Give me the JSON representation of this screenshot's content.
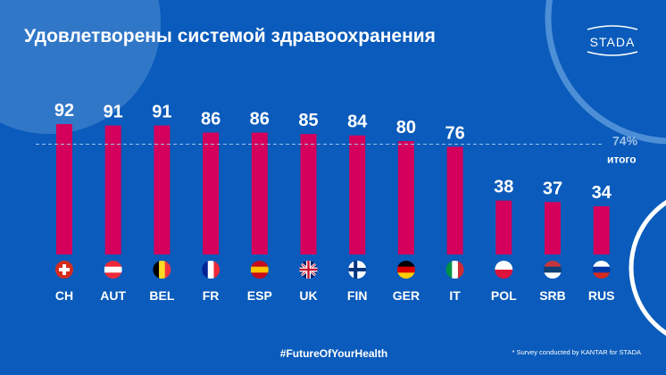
{
  "title": "Удовлетворены системой здравоохранения",
  "logo": "STADA",
  "hashtag": "#FutureOfYourHealth",
  "footnote": "* Survey conducted by KANTAR  for STADA",
  "colors": {
    "background": "#0a5bbb",
    "bar": "#d5005b",
    "reference_line": "#9fc1e8"
  },
  "chart_data": {
    "type": "bar",
    "title": "Удовлетворены системой здравоохранения",
    "categories": [
      "CH",
      "AUT",
      "BEL",
      "FR",
      "ESP",
      "UK",
      "FIN",
      "GER",
      "IT",
      "POL",
      "SRB",
      "RUS"
    ],
    "values": [
      92,
      91,
      91,
      86,
      86,
      85,
      84,
      80,
      76,
      38,
      37,
      34
    ],
    "flag_icons": [
      "switzerland-flag-icon",
      "austria-flag-icon",
      "belgium-flag-icon",
      "france-flag-icon",
      "spain-flag-icon",
      "uk-flag-icon",
      "finland-flag-icon",
      "germany-flag-icon",
      "italy-flag-icon",
      "poland-flag-icon",
      "serbia-flag-icon",
      "russia-flag-icon"
    ],
    "reference": {
      "value": 74,
      "label": "74%",
      "sublabel": "итого"
    },
    "grid": false,
    "legend": "none"
  }
}
